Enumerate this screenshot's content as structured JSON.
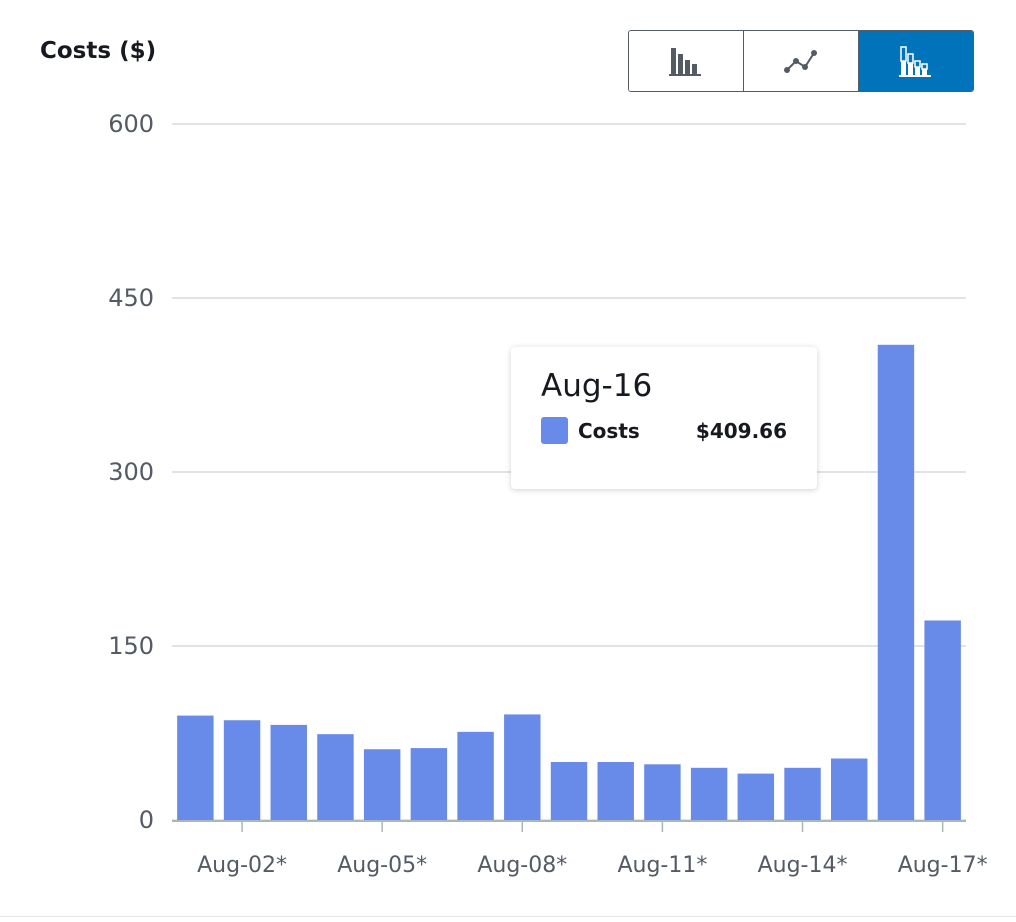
{
  "chart_data": {
    "type": "bar",
    "title": "Costs ($)",
    "categories": [
      "Aug-01",
      "Aug-02",
      "Aug-03",
      "Aug-04",
      "Aug-05",
      "Aug-06",
      "Aug-07",
      "Aug-08",
      "Aug-09",
      "Aug-10",
      "Aug-11",
      "Aug-12",
      "Aug-13",
      "Aug-14",
      "Aug-15",
      "Aug-16",
      "Aug-17"
    ],
    "series": [
      {
        "name": "Costs",
        "color": "#688ae8",
        "values": [
          90,
          86,
          82,
          74,
          61,
          62,
          76,
          91,
          50,
          50,
          48,
          45,
          40,
          45,
          53,
          409.66,
          172
        ]
      }
    ],
    "ylim": [
      0,
      600
    ],
    "y_ticks": [
      "0",
      "150",
      "300",
      "450",
      "600"
    ],
    "x_tick_labels": [
      "Aug-02*",
      "Aug-05*",
      "Aug-08*",
      "Aug-11*",
      "Aug-14*",
      "Aug-17*"
    ],
    "grid": true,
    "legend": "none",
    "tooltip": {
      "date": "Aug-16",
      "series": "Costs",
      "value": "$409.66"
    }
  },
  "toolbar": {
    "buttons": [
      {
        "icon": "bar-chart-icon",
        "active": false
      },
      {
        "icon": "line-chart-icon",
        "active": false
      },
      {
        "icon": "stacked-bar-chart-icon",
        "active": true
      }
    ],
    "active_color": "#0073bb"
  }
}
